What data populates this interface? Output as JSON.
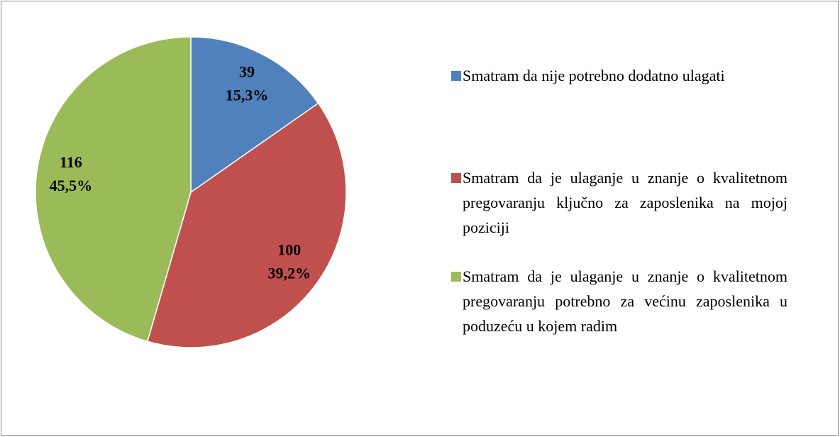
{
  "chart_data": {
    "type": "pie",
    "categories": [
      "Smatram da nije potrebno dodatno ulagati",
      "Smatram da je ulaganje u znanje o kvalitetnom pregovaranju ključno za zaposlenika na mojoj poziciji",
      "Smatram da je ulaganje u znanje o kvalitetnom pregovaranju potrebno za većinu zaposlenika u poduzeću u kojem radim"
    ],
    "values": [
      39,
      100,
      116
    ],
    "percents": [
      15.3,
      39.2,
      45.5
    ],
    "percent_labels": [
      "15,3%",
      "39,2%",
      "45,5%"
    ],
    "colors": [
      "#4f81bd",
      "#c0504d",
      "#9bbb59"
    ],
    "legend": "right"
  }
}
